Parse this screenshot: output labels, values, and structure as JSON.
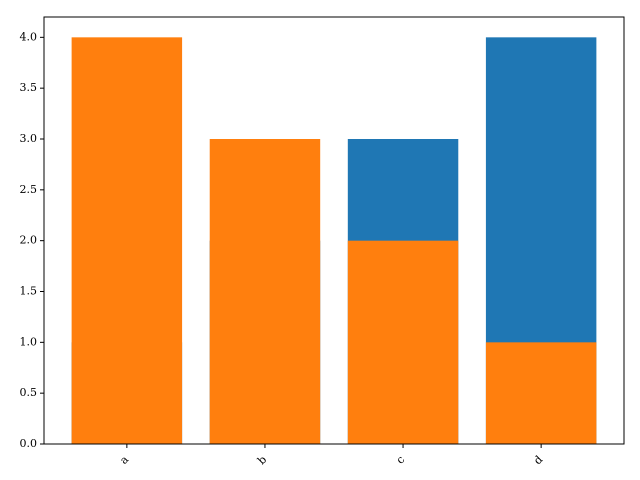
{
  "chart_data": {
    "type": "bar",
    "categories": [
      "a",
      "b",
      "c",
      "d"
    ],
    "series": [
      {
        "color": "#1f77b4",
        "values": [
          1,
          2,
          3,
          4
        ]
      },
      {
        "color": "#ff7f0e",
        "values": [
          4,
          3,
          2,
          1
        ]
      }
    ],
    "ylim": [
      0,
      4.2
    ],
    "yticks": [
      {
        "value": 0,
        "label": "0.0"
      },
      {
        "value": 0.5,
        "label": "0.5"
      },
      {
        "value": 1,
        "label": "1.0"
      },
      {
        "value": 1.5,
        "label": "1.5"
      },
      {
        "value": 2,
        "label": "2.0"
      },
      {
        "value": 2.5,
        "label": "2.5"
      },
      {
        "value": 3,
        "label": "3.0"
      },
      {
        "value": 3.5,
        "label": "3.5"
      },
      {
        "value": 4,
        "label": "4.0"
      }
    ],
    "grid": false
  }
}
